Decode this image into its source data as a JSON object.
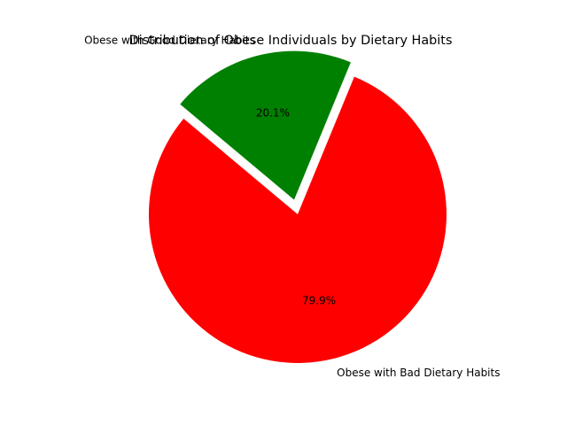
{
  "chart_data": {
    "type": "pie",
    "title": "Distribution of Obese Individuals by Dietary Habits",
    "labels": [
      "Obese with Bad Dietary Habits",
      "Obese with Good Dietary Habits"
    ],
    "values": [
      79.9,
      20.1
    ],
    "percent_labels": [
      "79.9%",
      "20.1%"
    ],
    "colors": [
      "#ff0000",
      "#008000"
    ],
    "exploded": [
      false,
      true
    ],
    "legend": "none"
  }
}
